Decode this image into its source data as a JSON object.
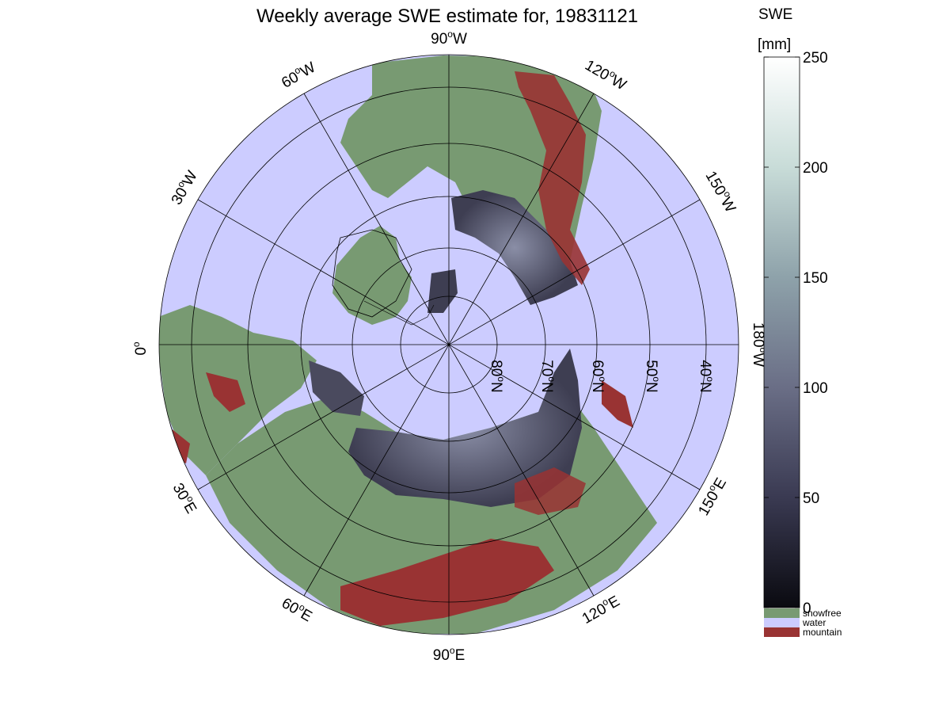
{
  "title": "Weekly average SWE estimate for, 19831121",
  "colorbar": {
    "label_line1": "SWE",
    "label_line2": "[mm]",
    "min": 0,
    "max": 250,
    "ticks": [
      "0",
      "50",
      "100",
      "150",
      "200",
      "250"
    ],
    "tick_values": [
      0,
      50,
      100,
      150,
      200,
      250
    ],
    "gradient_colors": [
      "#0a0a10",
      "#3a3a52",
      "#6a6e86",
      "#8ea2aa",
      "#c8dcd8",
      "#ffffff"
    ],
    "categories": [
      {
        "label": "snowfree",
        "color": "#789a72"
      },
      {
        "label": "water",
        "color": "#ccccff"
      },
      {
        "label": "mountain",
        "color": "#993333"
      }
    ]
  },
  "map": {
    "projection": "north polar stereographic",
    "ocean_color": "#ccccff",
    "land_color": "#789a72",
    "mountain_color": "#993333",
    "snow_color": "#4a4a5e",
    "meridian_labels": [
      {
        "text": "90",
        "suffix": "W",
        "lon": 90
      },
      {
        "text": "60",
        "suffix": "W",
        "lon": 60
      },
      {
        "text": "120",
        "suffix": "W",
        "lon": 120
      },
      {
        "text": "30",
        "suffix": "W",
        "lon": 30
      },
      {
        "text": "150",
        "suffix": "W",
        "lon": 150
      },
      {
        "text": "0",
        "suffix": "",
        "lon": 0
      },
      {
        "text": "180",
        "suffix": "W",
        "lon": 180
      },
      {
        "text": "30",
        "suffix": "E",
        "lon": -30
      },
      {
        "text": "150",
        "suffix": "E",
        "lon": -150
      },
      {
        "text": "60",
        "suffix": "E",
        "lon": -60
      },
      {
        "text": "120",
        "suffix": "E",
        "lon": -120
      },
      {
        "text": "90",
        "suffix": "E",
        "lon": -90
      }
    ],
    "latitude_labels": [
      {
        "text": "80",
        "suffix": "N"
      },
      {
        "text": "70",
        "suffix": "N"
      },
      {
        "text": "60",
        "suffix": "N"
      },
      {
        "text": "50",
        "suffix": "N"
      },
      {
        "text": "40",
        "suffix": "N"
      }
    ]
  }
}
